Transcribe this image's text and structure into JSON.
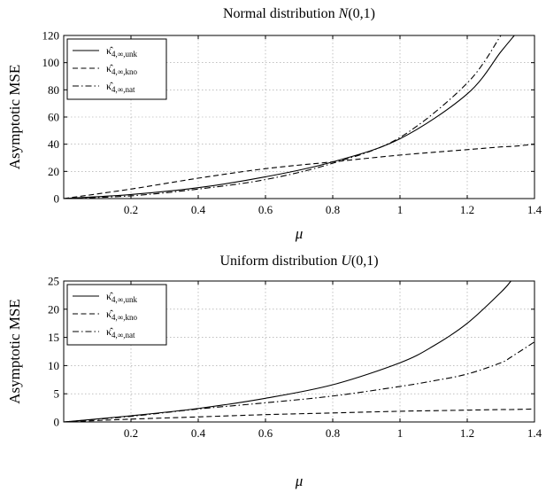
{
  "chart_data": [
    {
      "type": "line",
      "title": "Normal distribution N(0,1)",
      "title_main": "Normal distribution ",
      "title_math": "N",
      "title_args": "(0,1)",
      "xlabel": "μ",
      "ylabel": "Asymptotic MSE",
      "xlim": [
        0,
        1.4
      ],
      "ylim": [
        0,
        120
      ],
      "xticks": [
        0.2,
        0.4,
        0.6,
        0.8,
        1,
        1.2,
        1.4
      ],
      "xtick_labels": [
        "0.2",
        "0.4",
        "0.6",
        "0.8",
        "1",
        "1.2",
        "1.4"
      ],
      "yticks": [
        0,
        20,
        40,
        60,
        80,
        100,
        120
      ],
      "ytick_labels": [
        "0",
        "20",
        "40",
        "60",
        "80",
        "100",
        "120"
      ],
      "grid": true,
      "legend_position": "top-left",
      "x": [
        0,
        0.2,
        0.4,
        0.6,
        0.8,
        1.0,
        1.2,
        1.3,
        1.34,
        1.4
      ],
      "series": [
        {
          "name": "κ̂4,∞,unk",
          "name_base": "κ̂",
          "name_sub": "4,∞,unk",
          "style": "solid",
          "values": [
            0,
            3,
            8,
            16,
            27,
            44,
            77,
            108,
            120,
            null
          ]
        },
        {
          "name": "κ̂4,∞,kno",
          "name_base": "κ̂",
          "name_sub": "4,∞,kno",
          "style": "dashed",
          "values": [
            0,
            7,
            15,
            22,
            27,
            32,
            36,
            38,
            38.5,
            40
          ]
        },
        {
          "name": "κ̂4,∞,nat",
          "name_base": "κ̂",
          "name_sub": "4,∞,nat",
          "style": "dashdot",
          "values": [
            0,
            2,
            7,
            14,
            26,
            45,
            85,
            120,
            null,
            null
          ]
        }
      ]
    },
    {
      "type": "line",
      "title": "Uniform distribution U(0,1)",
      "title_main": "Uniform distribution ",
      "title_math": "U",
      "title_args": "(0,1)",
      "xlabel": "μ",
      "ylabel": "Asymptotic MSE",
      "xlim": [
        0,
        1.4
      ],
      "ylim": [
        0,
        25
      ],
      "xticks": [
        0.2,
        0.4,
        0.6,
        0.8,
        1,
        1.2,
        1.4
      ],
      "xtick_labels": [
        "0.2",
        "0.4",
        "0.6",
        "0.8",
        "1",
        "1.2",
        "1.4"
      ],
      "yticks": [
        0,
        5,
        10,
        15,
        20,
        25
      ],
      "ytick_labels": [
        "0",
        "5",
        "10",
        "15",
        "20",
        "25"
      ],
      "grid": true,
      "legend_position": "top-left",
      "x": [
        0,
        0.2,
        0.4,
        0.6,
        0.8,
        1.0,
        1.1,
        1.2,
        1.3,
        1.33,
        1.4
      ],
      "series": [
        {
          "name": "κ̂4,∞,unk",
          "name_base": "κ̂",
          "name_sub": "4,∞,unk",
          "style": "solid",
          "values": [
            0,
            1.1,
            2.4,
            4.2,
            6.6,
            10.5,
            13.5,
            17.5,
            23,
            25,
            null
          ]
        },
        {
          "name": "κ̂4,∞,kno",
          "name_base": "κ̂",
          "name_sub": "4,∞,kno",
          "style": "dashed",
          "values": [
            0,
            0.5,
            0.9,
            1.3,
            1.6,
            1.9,
            2.0,
            2.1,
            2.2,
            2.2,
            2.3
          ]
        },
        {
          "name": "κ̂4,∞,nat",
          "name_base": "κ̂",
          "name_sub": "4,∞,nat",
          "style": "dashdot",
          "values": [
            0,
            1.0,
            2.3,
            3.4,
            4.6,
            6.3,
            7.3,
            8.5,
            10.5,
            11.5,
            14.2
          ]
        }
      ]
    }
  ]
}
